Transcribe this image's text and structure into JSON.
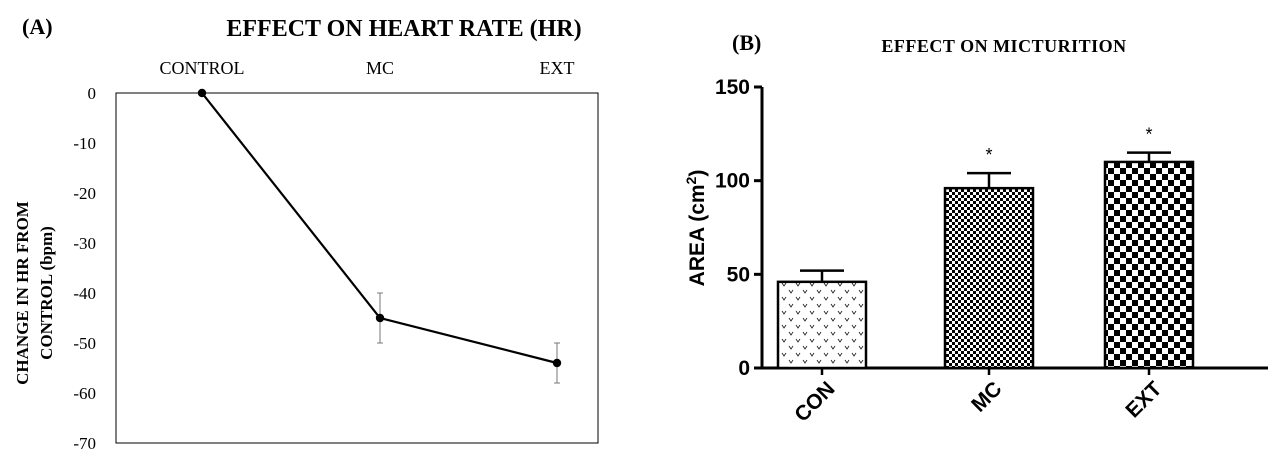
{
  "chart_data": [
    {
      "panel_label": "(A)",
      "type": "line",
      "title": "EFFECT ON HEART RATE (HR)",
      "categories": [
        "CONTROL",
        "MC",
        "EXT"
      ],
      "ylabel_lines": [
        "CHANGE IN HR  FROM",
        "CONTROL (bpm)"
      ],
      "ylim": [
        -70,
        0
      ],
      "yticks": [
        "0",
        "-10",
        "-20",
        "-30",
        "-40",
        "-50",
        "-60",
        "-70"
      ],
      "x_axis_position": "top",
      "series": [
        {
          "values": [
            0,
            -45,
            -54
          ],
          "error": [
            0,
            5,
            4
          ]
        }
      ],
      "grid": false,
      "legend": "none"
    },
    {
      "panel_label": "(B)",
      "type": "bar",
      "title": "EFFECT ON MICTURITION",
      "categories": [
        "CON",
        "MC",
        "EXT"
      ],
      "ylabel_base": "AREA (cm",
      "ylabel_sup": "2",
      "ylabel_close": ")",
      "ylim": [
        0,
        150
      ],
      "yticks": [
        "0",
        "50",
        "100",
        "150"
      ],
      "values": [
        46,
        96,
        110
      ],
      "error": [
        6,
        8,
        5
      ],
      "significance": [
        "",
        "*",
        "*"
      ],
      "grid": false,
      "legend": "none"
    }
  ]
}
